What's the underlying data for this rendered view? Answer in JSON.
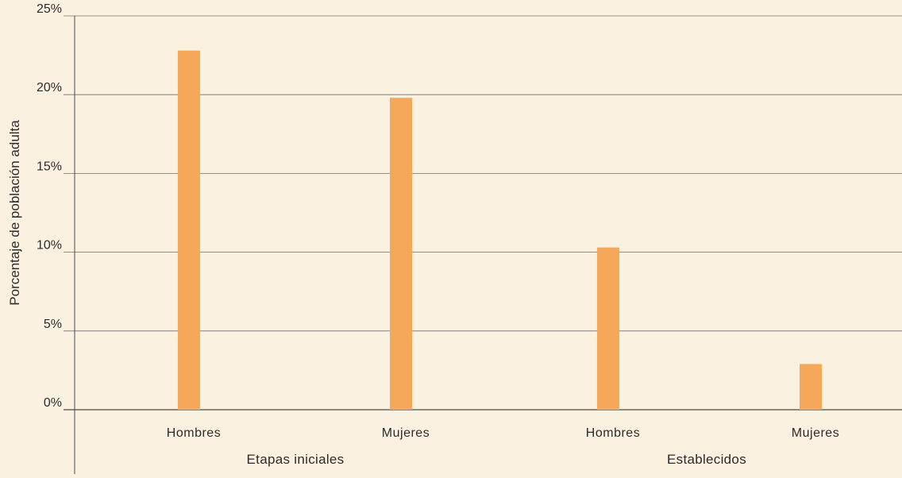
{
  "chart_data": {
    "type": "bar",
    "ylabel": "Porcentaje de población adulta",
    "xlabel": "",
    "ylim": [
      0,
      25
    ],
    "yticks": [
      {
        "value": 0,
        "label": "0%"
      },
      {
        "value": 5,
        "label": "5%"
      },
      {
        "value": 10,
        "label": "10%"
      },
      {
        "value": 15,
        "label": "15%"
      },
      {
        "value": 20,
        "label": "20%"
      },
      {
        "value": 25,
        "label": "25%"
      }
    ],
    "groups": [
      {
        "label": "Etapas iniciales",
        "categories": [
          "Hombres",
          "Mujeres"
        ]
      },
      {
        "label": "Establecidos",
        "categories": [
          "Hombres",
          "Mujeres"
        ]
      }
    ],
    "categories": [
      "Hombres",
      "Mujeres",
      "Hombres",
      "Mujeres"
    ],
    "values": [
      22.8,
      19.8,
      10.3,
      2.9
    ],
    "grid": true,
    "colors": {
      "bar": "#f5a85a",
      "background": "#fbf1e1",
      "grid": "#6f6f6f",
      "axis": "#4a4a4a"
    }
  }
}
